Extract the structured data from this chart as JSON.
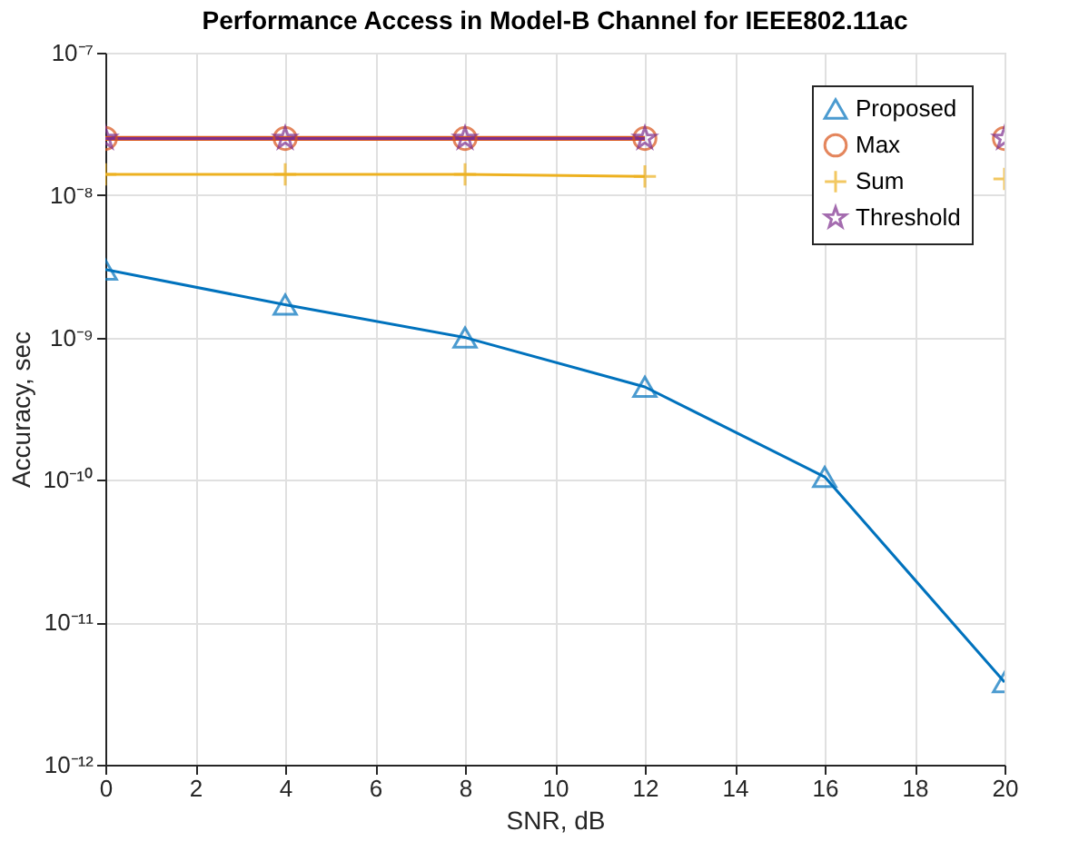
{
  "chart_data": {
    "type": "line",
    "title": "Performance Access in Model-B Channel for IEEE802.11ac",
    "xlabel": "SNR, dB",
    "ylabel": "Accuracy, sec",
    "x": [
      0,
      4,
      8,
      12,
      16,
      20
    ],
    "log": "y",
    "grid": true,
    "legend": "top right",
    "xlim": [
      0,
      20
    ],
    "xticks": [
      0,
      2,
      4,
      6,
      8,
      10,
      12,
      14,
      16,
      18,
      20
    ],
    "ylim": [
      1e-12,
      1e-07
    ],
    "yticks": [
      {
        "value": 1e-12,
        "label": "10⁻¹²"
      },
      {
        "value": 1e-11,
        "label": "10⁻¹¹"
      },
      {
        "value": 1e-10,
        "label": "10⁻¹⁰"
      },
      {
        "value": 1e-09,
        "label": "10⁻⁹"
      },
      {
        "value": 1e-08,
        "label": "10⁻⁸"
      },
      {
        "value": 1e-07,
        "label": "10⁻⁷"
      }
    ],
    "series": [
      {
        "name": "Proposed",
        "color": "#0072bd",
        "marker": "triangle",
        "values": [
          3e-09,
          1.7e-09,
          1e-09,
          4.5e-10,
          1.05e-10,
          3.8e-12
        ]
      },
      {
        "name": "Max",
        "color": "#d95319",
        "marker": "circle",
        "values": [
          2.5e-08,
          2.5e-08,
          2.5e-08,
          2.5e-08,
          null,
          2.5e-08
        ]
      },
      {
        "name": "Sum",
        "color": "#edb120",
        "marker": "cross",
        "values": [
          1.4e-08,
          1.4e-08,
          1.4e-08,
          1.35e-08,
          null,
          1.3e-08
        ]
      },
      {
        "name": "Threshold",
        "color": "#7e2f8e",
        "marker": "star",
        "values": [
          2.5e-08,
          2.5e-08,
          2.5e-08,
          2.5e-08,
          null,
          2.5e-08
        ]
      }
    ]
  }
}
